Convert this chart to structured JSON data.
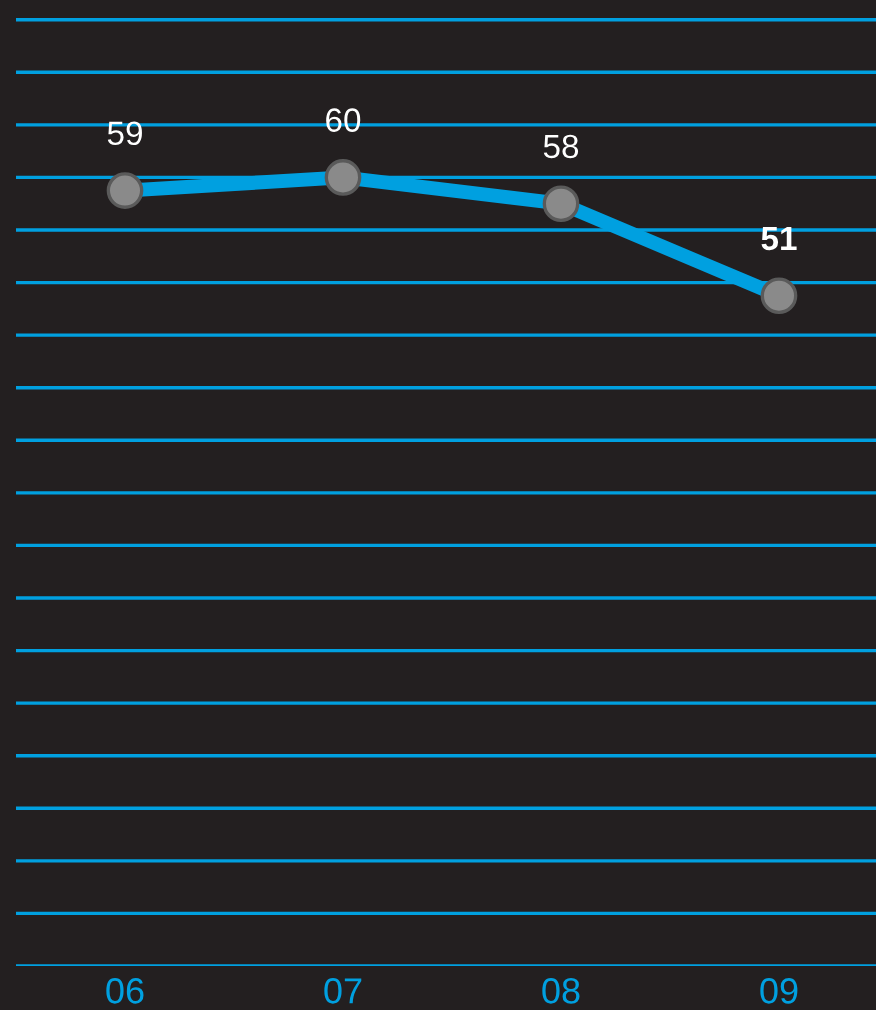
{
  "chart_data": {
    "type": "line",
    "categories": [
      "06",
      "07",
      "08",
      "09"
    ],
    "series": [
      {
        "color": "#00a0e0",
        "values": [
          59,
          60,
          58,
          51
        ]
      }
    ],
    "ylim": [
      0,
      73.5
    ],
    "yticks": [
      {
        "value": 0,
        "label": null
      },
      {
        "value": 4,
        "label": null
      },
      {
        "value": 8,
        "label": null
      },
      {
        "value": 12,
        "label": null
      },
      {
        "value": 16,
        "label": null
      },
      {
        "value": 20,
        "label": null
      },
      {
        "value": 24,
        "label": null
      },
      {
        "value": 28,
        "label": null
      },
      {
        "value": 32,
        "label": null
      },
      {
        "value": 36,
        "label": null
      },
      {
        "value": 40,
        "label": null
      },
      {
        "value": 44,
        "label": null
      },
      {
        "value": 48,
        "label": null
      },
      {
        "value": 52,
        "label": null
      },
      {
        "value": 56,
        "label": null
      },
      {
        "value": 60,
        "label": null
      },
      {
        "value": 64,
        "label": null
      },
      {
        "value": 68,
        "label": null
      },
      {
        "value": 72,
        "label": null
      }
    ],
    "grid": "y",
    "tick_labels": "x",
    "marker": "circle",
    "line_style": "solid",
    "data_labels": true
  }
}
